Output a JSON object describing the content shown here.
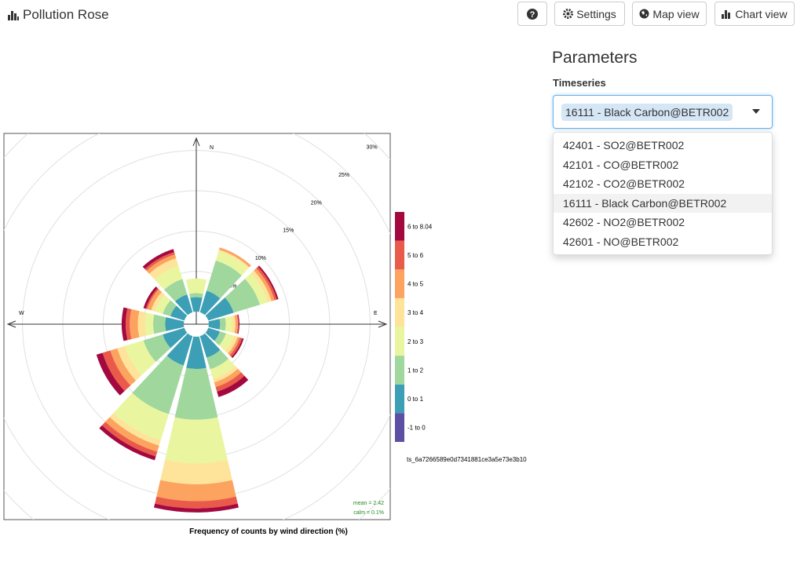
{
  "header": {
    "title": "Pollution Rose",
    "buttons": [
      "Settings",
      "Map view",
      "Chart view"
    ]
  },
  "parameters": {
    "title": "Parameters",
    "label": "Timeseries",
    "selected": "16111 - Black Carbon@BETR002",
    "options": [
      "42401 - SO2@BETR002",
      "42101 - CO@BETR002",
      "42102 - CO2@BETR002",
      "16111 - Black Carbon@BETR002",
      "42602 - NO2@BETR002",
      "42601 - NO@BETR002"
    ]
  },
  "chart_data": {
    "type": "rose",
    "xlabel": "Frequency of counts by wind direction (%)",
    "series_id": "ts_6a7266589e0d7341881ce3a5e73e3b10",
    "directions": [
      "N",
      "E",
      "W"
    ],
    "rlim": [
      0,
      30
    ],
    "rticks": [
      {
        "value": 5,
        "label": "5%"
      },
      {
        "value": 10,
        "label": "10%"
      },
      {
        "value": 15,
        "label": "15%"
      },
      {
        "value": 20,
        "label": "20%"
      },
      {
        "value": 25,
        "label": "25%"
      },
      {
        "value": 30,
        "label": "30%"
      }
    ],
    "annotations": [
      "mean = 2.42",
      "calm = 0.1%"
    ],
    "series": [
      {
        "name": "-1 to 0",
        "color": "#5e4fa2",
        "values": [
          0,
          0,
          0,
          0,
          0,
          0,
          0,
          0,
          0,
          0,
          0,
          0
        ]
      },
      {
        "name": "0 to 1",
        "color": "#3d9fb5",
        "values": [
          1.8,
          2.8,
          3.3,
          1.4,
          1.5,
          2.8,
          4.0,
          3.8,
          2.8,
          2.3,
          1.8,
          2.3
        ]
      },
      {
        "name": "1 to 2",
        "color": "#9fd79c",
        "values": [
          0.5,
          3.9,
          3.4,
          0.7,
          0.8,
          1.5,
          6.3,
          6.3,
          2.5,
          1.5,
          1.0,
          2.0
        ]
      },
      {
        "name": "2 to 3",
        "color": "#e9f69f",
        "values": [
          1.8,
          1.2,
          1.0,
          0.8,
          1.0,
          1.2,
          5.4,
          3.4,
          2.4,
          1.0,
          1.0,
          1.7
        ]
      },
      {
        "name": "3 to 4",
        "color": "#fde49a",
        "values": [
          0,
          0.2,
          0.5,
          0.4,
          0.5,
          0.5,
          2.6,
          0.7,
          1.0,
          0.9,
          0.5,
          1.0
        ]
      },
      {
        "name": "4 to 5",
        "color": "#fba35f",
        "values": [
          0,
          0.3,
          0.4,
          0.3,
          0.3,
          0.6,
          2.1,
          0.8,
          0.9,
          1.0,
          0.5,
          0.5
        ]
      },
      {
        "name": "5 to 6",
        "color": "#ea5a4a",
        "values": [
          0,
          0,
          0.3,
          0.1,
          0.3,
          0.6,
          0.9,
          0.6,
          1.0,
          0.5,
          0.2,
          0.3
        ]
      },
      {
        "name": "6 to 8.04",
        "color": "#a3093f",
        "values": [
          0,
          0,
          0.2,
          0.1,
          0.2,
          0.7,
          0.5,
          0.5,
          0.8,
          0.5,
          0.3,
          0.4
        ]
      }
    ]
  }
}
